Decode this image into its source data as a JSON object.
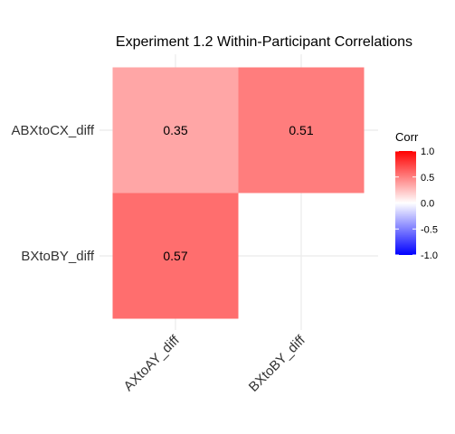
{
  "chart_data": {
    "type": "heatmap",
    "title": "Experiment 1.2 Within-Participant Correlations",
    "xlabel": "",
    "ylabel": "",
    "x_categories": [
      "AXtoAY_diff",
      "BXtoBY_diff"
    ],
    "y_categories": [
      "ABXtoCX_diff",
      "BXtoBY_diff"
    ],
    "cells": [
      {
        "x": "AXtoAY_diff",
        "y": "ABXtoCX_diff",
        "value": 0.35,
        "label": "0.35"
      },
      {
        "x": "BXtoBY_diff",
        "y": "ABXtoCX_diff",
        "value": 0.51,
        "label": "0.51"
      },
      {
        "x": "AXtoAY_diff",
        "y": "BXtoBY_diff",
        "value": 0.57,
        "label": "0.57"
      }
    ],
    "grid": true,
    "legend": {
      "title": "Corr",
      "position": "right",
      "range": [
        -1,
        1
      ],
      "ticks": [
        {
          "value": 1,
          "label": "1.0"
        },
        {
          "value": 0.5,
          "label": "0.5"
        },
        {
          "value": 0,
          "label": "0.0"
        },
        {
          "value": -0.5,
          "label": "-0.5"
        },
        {
          "value": -1,
          "label": "-1.0"
        }
      ],
      "colors": {
        "low": "#0000ff",
        "mid": "#ffffff",
        "high": "#ff0000"
      }
    }
  }
}
